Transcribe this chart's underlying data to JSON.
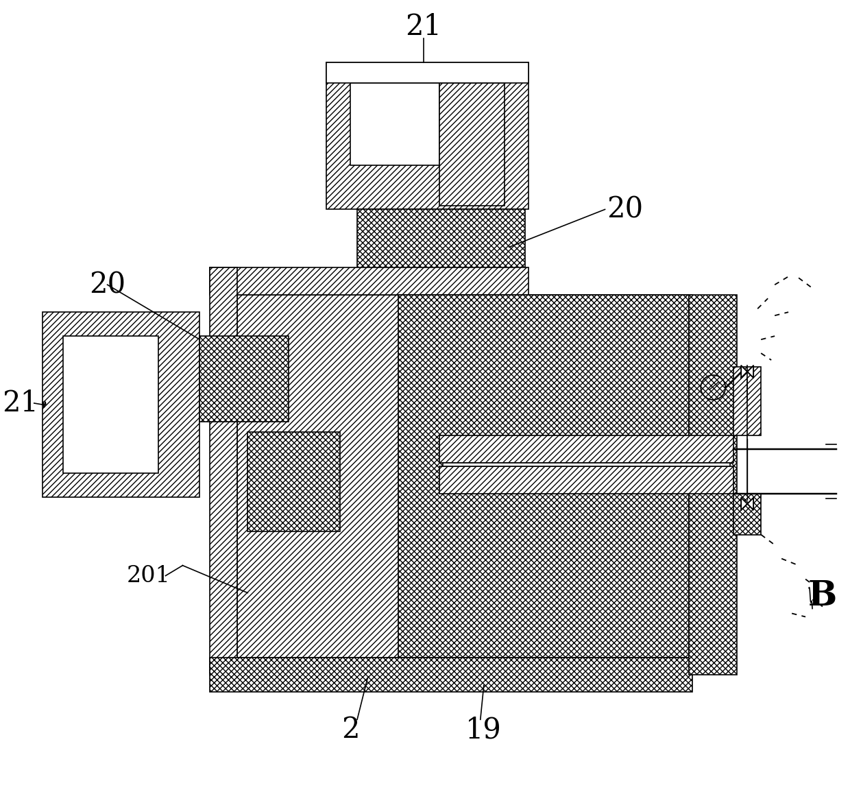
{
  "bg_color": "#ffffff",
  "line_color": "#000000",
  "lw": 1.2,
  "labels": {
    "21_top": "21",
    "20_right": "20",
    "20_left": "20",
    "21_left": "21",
    "201": "201",
    "2": "2",
    "19": "19",
    "B": "B"
  },
  "font_size_large": 30,
  "font_size_medium": 24
}
